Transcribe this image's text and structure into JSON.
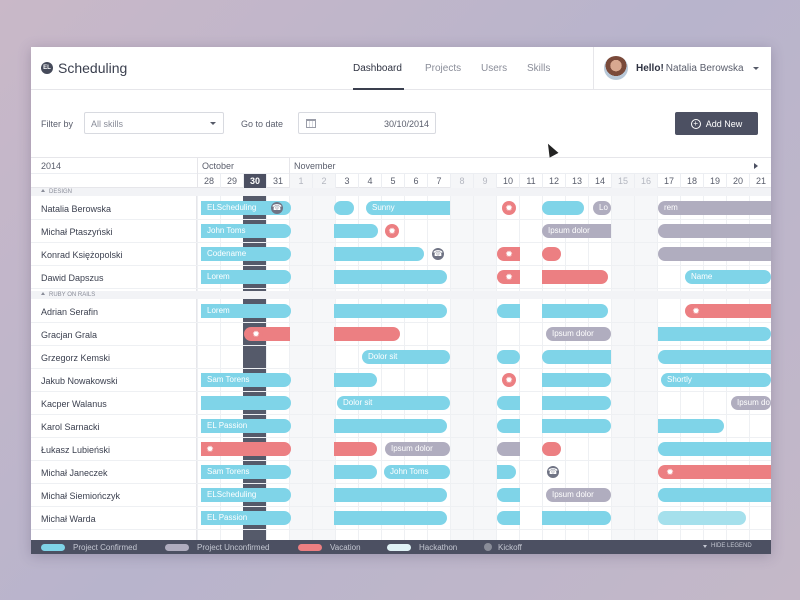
{
  "app": {
    "title": "Scheduling",
    "logo_text": "EL"
  },
  "nav": {
    "links": [
      "Dashboard",
      "Projects",
      "Users",
      "Skills"
    ],
    "active": "Dashboard"
  },
  "user": {
    "greeting": "Hello!",
    "name": "Natalia Berowska"
  },
  "filter": {
    "filter_label": "Filter by",
    "skills_value": "All skills",
    "goto_label": "Go to date",
    "date_value": "30/10/2014",
    "add_new_label": "Add New"
  },
  "calendar": {
    "year": "2014",
    "months": [
      "October",
      "November"
    ],
    "days": [
      "28",
      "29",
      "30",
      "31",
      "1",
      "2",
      "3",
      "4",
      "5",
      "6",
      "7",
      "8",
      "9",
      "10",
      "11",
      "12",
      "13",
      "14",
      "15",
      "16",
      "17",
      "18",
      "19",
      "20",
      "21"
    ],
    "today": "30"
  },
  "groups": [
    "DESIGN",
    "RUBY ON RAILS"
  ],
  "people": [
    "Natalia Berowska",
    "Michał Ptaszyński",
    "Konrad Księżopolski",
    "Dawid Dapszus",
    "Adrian Serafin",
    "Gracjan Grala",
    "Grzegorz Kemski",
    "Jakub Nowakowski",
    "Kacper Walanus",
    "Karol Sarnacki",
    "Łukasz Lubieński",
    "Michał Janeczek",
    "Michał Siemiończyk",
    "Michał Warda"
  ],
  "bar_labels": {
    "elscheduling": "ELScheduling",
    "sunny": "Sunny",
    "lo": "Lo",
    "rem": "rem",
    "john_toms": "John Toms",
    "ipsum_dolor": "Ipsum dolor",
    "codename": "Codename",
    "lorem": "Lorem",
    "name": "Name",
    "dolor_sit": "Dolor sit",
    "sam_torens": "Sam Torens",
    "shortly": "Shortly",
    "ipsum_do": "Ipsum do",
    "el_passion": "EL Passion"
  },
  "legend": {
    "items": [
      "Project Confirmed",
      "Project Unconfirmed",
      "Vacation",
      "Hackathon",
      "Kickoff"
    ],
    "colors": [
      "#7fd4e8",
      "#b0adbf",
      "#ec7f82",
      "#a5e0ec",
      "#8a8d99"
    ],
    "hide_label": "HIDE LEGEND"
  }
}
